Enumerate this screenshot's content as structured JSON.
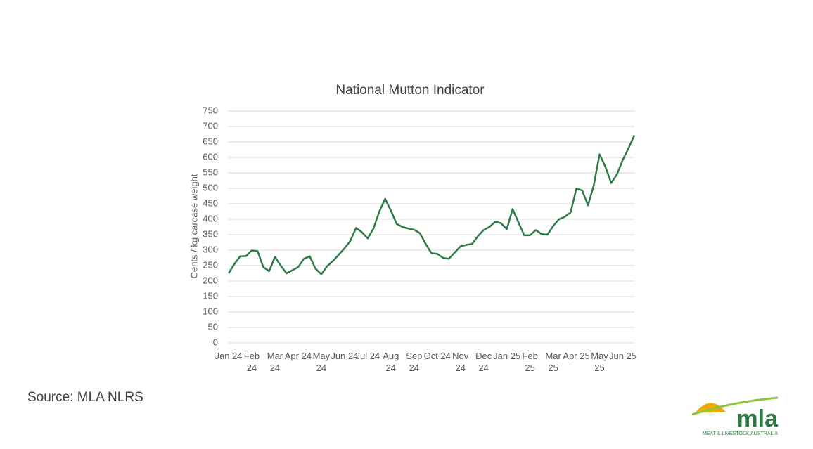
{
  "chart_data": {
    "type": "line",
    "title": "National Mutton Indicator",
    "y_label": "Cents / kg carcase weight",
    "categories": [
      "Jan 24",
      null,
      null,
      null,
      "Feb 24",
      null,
      null,
      null,
      "Mar 24",
      null,
      null,
      null,
      "Apr 24",
      null,
      null,
      null,
      "May 24",
      null,
      null,
      null,
      "Jun 24",
      null,
      null,
      null,
      "Jul 24",
      null,
      null,
      null,
      "Aug 24",
      null,
      null,
      null,
      "Sep 24",
      null,
      null,
      null,
      "Oct 24",
      null,
      null,
      null,
      "Nov 24",
      null,
      null,
      null,
      "Dec 24",
      null,
      null,
      null,
      "Jan 25",
      null,
      null,
      null,
      "Feb 25",
      null,
      null,
      null,
      "Mar 25",
      null,
      null,
      null,
      "Apr 25",
      null,
      null,
      null,
      "May 25",
      null,
      null,
      null,
      "Jun 25",
      null,
      null
    ],
    "values": [
      225,
      255,
      280,
      281,
      299,
      297,
      245,
      232,
      278,
      250,
      225,
      235,
      245,
      272,
      280,
      240,
      222,
      248,
      265,
      285,
      306,
      330,
      372,
      358,
      338,
      370,
      425,
      466,
      428,
      385,
      375,
      370,
      366,
      355,
      320,
      290,
      288,
      275,
      272,
      292,
      312,
      317,
      320,
      345,
      365,
      375,
      392,
      387,
      368,
      433,
      390,
      348,
      348,
      365,
      352,
      350,
      378,
      400,
      408,
      422,
      499,
      493,
      445,
      510,
      610,
      570,
      517,
      545,
      592,
      630,
      672
    ],
    "color": "#2e7a46",
    "ylim": [
      0,
      750
    ],
    "yticks": [
      0,
      50,
      100,
      150,
      200,
      250,
      300,
      350,
      400,
      450,
      500,
      550,
      600,
      650,
      700,
      750
    ],
    "grid": true
  },
  "source": "Source: MLA NLRS",
  "logo": {
    "name": "mla",
    "tagline": "MEAT & LIVESTOCK AUSTRALIA"
  }
}
